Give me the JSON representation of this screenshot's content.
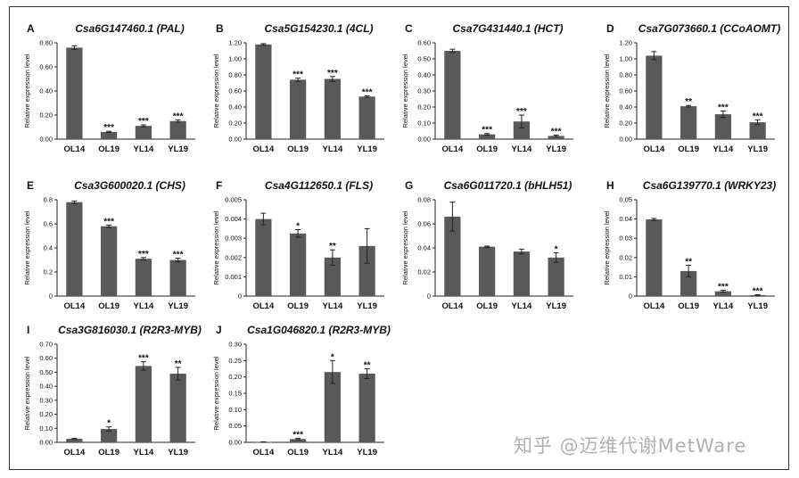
{
  "watermark": "知乎 @迈维代谢MetWare",
  "bar_color": "#595959",
  "chart_data": [
    {
      "panel": "A",
      "title": "Csa6G147460.1 (PAL)",
      "type": "bar",
      "ylabel": "Relative expression level",
      "categories": [
        "OL14",
        "OL19",
        "YL14",
        "YL19"
      ],
      "values": [
        0.76,
        0.06,
        0.11,
        0.15
      ],
      "errors": [
        0.015,
        0.005,
        0.008,
        0.01
      ],
      "sig": [
        "",
        "***",
        "***",
        "***"
      ],
      "ylim": [
        0,
        0.8
      ],
      "ticks": [
        "0.00",
        "0.20",
        "0.40",
        "0.60",
        "0.80"
      ]
    },
    {
      "panel": "B",
      "title": "Csa5G154230.1 (4CL)",
      "type": "bar",
      "ylabel": "Relative expression level",
      "categories": [
        "OL14",
        "OL19",
        "YL14",
        "YL19"
      ],
      "values": [
        1.18,
        0.74,
        0.75,
        0.53
      ],
      "errors": [
        0.01,
        0.02,
        0.03,
        0.01
      ],
      "sig": [
        "",
        "***",
        "***",
        "***"
      ],
      "ylim": [
        0,
        1.2
      ],
      "ticks": [
        "0.00",
        "0.20",
        "0.40",
        "0.60",
        "0.80",
        "1.00",
        "1.20"
      ]
    },
    {
      "panel": "C",
      "title": "Csa7G431440.1 (HCT)",
      "type": "bar",
      "ylabel": "Relative expression level",
      "categories": [
        "OL14",
        "OL19",
        "YL14",
        "YL19"
      ],
      "values": [
        0.55,
        0.03,
        0.11,
        0.02
      ],
      "errors": [
        0.01,
        0.005,
        0.04,
        0.005
      ],
      "sig": [
        "",
        "***",
        "***",
        "***"
      ],
      "ylim": [
        0,
        0.6
      ],
      "ticks": [
        "0.00",
        "0.10",
        "0.20",
        "0.30",
        "0.40",
        "0.50",
        "0.60"
      ]
    },
    {
      "panel": "D",
      "title": "Csa7G073660.1 (CCoAOMT)",
      "type": "bar",
      "ylabel": "Relative expression level",
      "categories": [
        "OL14",
        "OL19",
        "YL14",
        "YL19"
      ],
      "values": [
        1.04,
        0.41,
        0.31,
        0.21
      ],
      "errors": [
        0.05,
        0.01,
        0.04,
        0.03
      ],
      "sig": [
        "",
        "**",
        "***",
        "***"
      ],
      "ylim": [
        0,
        1.2
      ],
      "ticks": [
        "0.00",
        "0.20",
        "0.40",
        "0.60",
        "0.80",
        "1.00",
        "1.20"
      ]
    },
    {
      "panel": "E",
      "title": "Csa3G600020.1 (CHS)",
      "type": "bar",
      "ylabel": "Relative expression level",
      "categories": [
        "OL14",
        "OL19",
        "YL14",
        "YL19"
      ],
      "values": [
        0.78,
        0.58,
        0.31,
        0.3
      ],
      "errors": [
        0.01,
        0.01,
        0.01,
        0.015
      ],
      "sig": [
        "",
        "***",
        "***",
        "***"
      ],
      "ylim": [
        0,
        0.8
      ],
      "ticks": [
        "0",
        "0.2",
        "0.4",
        "0.6",
        "0.8"
      ]
    },
    {
      "panel": "F",
      "title": "Csa4G112650.1 (FLS)",
      "type": "bar",
      "ylabel": "Relative expression level",
      "categories": [
        "OL14",
        "OL19",
        "YL14",
        "YL19"
      ],
      "values": [
        0.004,
        0.00325,
        0.002,
        0.0026
      ],
      "errors": [
        0.0003,
        0.0002,
        0.0004,
        0.0009
      ],
      "sig": [
        "",
        "*",
        "**",
        ""
      ],
      "ylim": [
        0,
        0.005
      ],
      "ticks": [
        "0",
        "0.001",
        "0.002",
        "0.003",
        "0.004",
        "0.005"
      ]
    },
    {
      "panel": "G",
      "title": "Csa6G011720.1 (bHLH51)",
      "type": "bar",
      "ylabel": "Relative expression level",
      "categories": [
        "OL14",
        "OL19",
        "YL14",
        "YL19"
      ],
      "values": [
        0.066,
        0.041,
        0.037,
        0.032
      ],
      "errors": [
        0.012,
        0.0005,
        0.002,
        0.004
      ],
      "sig": [
        "",
        "",
        "",
        "*"
      ],
      "ylim": [
        0,
        0.08
      ],
      "ticks": [
        "0",
        "0.02",
        "0.04",
        "0.06",
        "0.08"
      ]
    },
    {
      "panel": "H",
      "title": "Csa6G139770.1 (WRKY23)",
      "type": "bar",
      "ylabel": "Relative expression level",
      "categories": [
        "OL14",
        "OL19",
        "YL14",
        "YL19"
      ],
      "values": [
        0.0398,
        0.013,
        0.0025,
        0.0005
      ],
      "errors": [
        0.0005,
        0.003,
        0.0005,
        0.0002
      ],
      "sig": [
        "",
        "**",
        "***",
        "***"
      ],
      "ylim": [
        0,
        0.05
      ],
      "ticks": [
        "0",
        "0.01",
        "0.02",
        "0.03",
        "0.04",
        "0.05"
      ]
    },
    {
      "panel": "I",
      "title": "Csa3G816030.1 (R2R3-MYB)",
      "type": "bar",
      "ylabel": "Relative expression level",
      "categories": [
        "OL14",
        "OL19",
        "YL14",
        "YL19"
      ],
      "values": [
        0.025,
        0.095,
        0.545,
        0.49
      ],
      "errors": [
        0.003,
        0.015,
        0.03,
        0.045
      ],
      "sig": [
        "",
        "*",
        "***",
        "**"
      ],
      "ylim": [
        0,
        0.7
      ],
      "ticks": [
        "0.00",
        "0.10",
        "0.20",
        "0.30",
        "0.40",
        "0.50",
        "0.60",
        "0.70"
      ]
    },
    {
      "panel": "J",
      "title": "Csa1G046820.1 (R2R3-MYB)",
      "type": "bar",
      "ylabel": "Relative expression level",
      "categories": [
        "OL14",
        "OL19",
        "YL14",
        "YL19"
      ],
      "values": [
        0.001,
        0.01,
        0.215,
        0.21
      ],
      "errors": [
        0.0005,
        0.002,
        0.035,
        0.015
      ],
      "sig": [
        "",
        "***",
        "*",
        "**"
      ],
      "ylim": [
        0,
        0.3
      ],
      "ticks": [
        "0.00",
        "0.05",
        "0.10",
        "0.15",
        "0.20",
        "0.25",
        "0.30"
      ]
    }
  ]
}
